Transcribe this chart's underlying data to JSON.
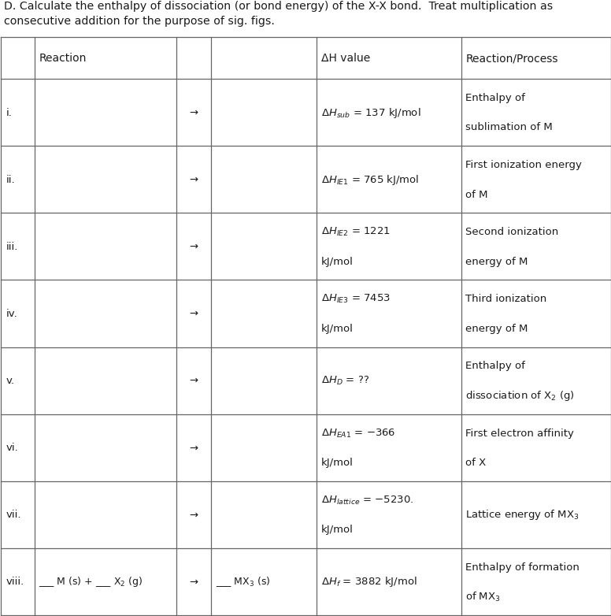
{
  "title_line1": "D. Calculate the enthalpy of dissociation (or bond energy) of the X-X bond.  Treat multiplication as",
  "title_line2": "consecutive addition for the purpose of sig. figs.",
  "background_color": "#ffffff",
  "text_color": "#1a1a1a",
  "border_color": "#666666",
  "font_size": 9.5,
  "rows": [
    {
      "label": "i.",
      "reactant": "",
      "product": "",
      "dh": "$\\Delta H_{sub}$ = 137 kJ/mol",
      "dh2": "",
      "process1": "Enthalpy of",
      "process2": "sublimation of M"
    },
    {
      "label": "ii.",
      "reactant": "",
      "product": "",
      "dh": "$\\Delta H_{IE1}$ = 765 kJ/mol",
      "dh2": "",
      "process1": "First ionization energy",
      "process2": "of M"
    },
    {
      "label": "iii.",
      "reactant": "",
      "product": "",
      "dh": "$\\Delta H_{IE2}$ = 1221",
      "dh2": "kJ/mol",
      "process1": "Second ionization",
      "process2": "energy of M"
    },
    {
      "label": "iv.",
      "reactant": "",
      "product": "",
      "dh": "$\\Delta H_{IE3}$ = 7453",
      "dh2": "kJ/mol",
      "process1": "Third ionization",
      "process2": "energy of M"
    },
    {
      "label": "v.",
      "reactant": "",
      "product": "",
      "dh": "$\\Delta H_{D}$ = ??",
      "dh2": "",
      "process1": "Enthalpy of",
      "process2": "dissociation of X$_2$ (g)"
    },
    {
      "label": "vi.",
      "reactant": "",
      "product": "",
      "dh": "$\\Delta H_{EA1}$ = −366",
      "dh2": "kJ/mol",
      "process1": "First electron affinity",
      "process2": "of X"
    },
    {
      "label": "vii.",
      "reactant": "",
      "product": "",
      "dh": "$\\Delta H_{lattice}$ = −5230.",
      "dh2": "kJ/mol",
      "process1": "Lattice energy of MX$_3$",
      "process2": ""
    },
    {
      "label": "viii.",
      "reactant": "___ M (s) + ___ X$_2$ (g)",
      "product": "___ MX$_3$ (s)",
      "dh": "$\\Delta H_f$ = 3882 kJ/mol",
      "dh2": "",
      "process1": "Enthalpy of formation",
      "process2": "of MX$_3$"
    }
  ]
}
